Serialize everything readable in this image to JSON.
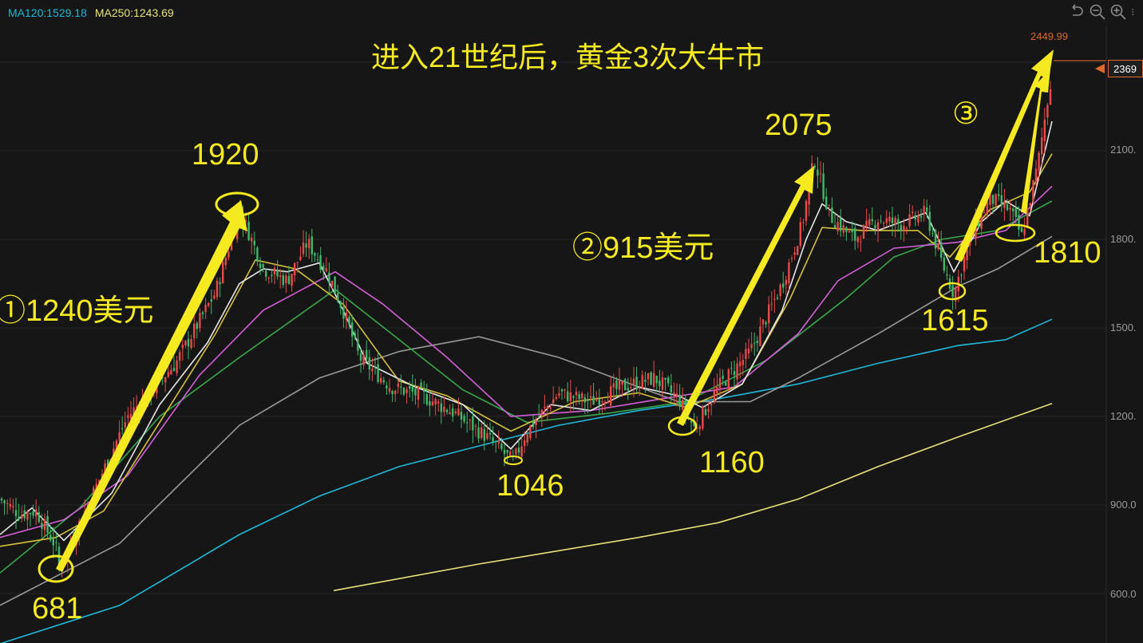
{
  "header": {
    "ma120_label": "MA120:1529.18",
    "ma250_label": "MA250:1243.69",
    "ma120_color": "#1fb8d8",
    "ma250_color": "#e9e27c",
    "icons": [
      "undo-icon",
      "zoom-out-icon",
      "zoom-in-icon",
      "more-icon"
    ]
  },
  "annotations": {
    "title": "进入21世纪后，黄金3次大牛市",
    "wave1": "①1240美元",
    "wave2": "②915美元",
    "wave3": "③",
    "p681": "681",
    "p1920": "1920",
    "p1046": "1046",
    "p1160": "1160",
    "p2075": "2075",
    "p1615": "1615",
    "p1810": "1810",
    "color": "#f5ea1f"
  },
  "price_axis": {
    "ticks": [
      "2100.",
      "1800.",
      "1500.",
      "1200.",
      "900.0",
      "600.0"
    ],
    "current_price": "2369",
    "high_marker": "2449.99",
    "marker_color": "#e0682c"
  },
  "chart_data": {
    "type": "candlestick",
    "ylim": [
      450,
      2500
    ],
    "price_path": [
      [
        0,
        920
      ],
      [
        25,
        870
      ],
      [
        45,
        880
      ],
      [
        70,
        760
      ],
      [
        73,
        681
      ],
      [
        110,
        900
      ],
      [
        160,
        1200
      ],
      [
        220,
        1380
      ],
      [
        270,
        1620
      ],
      [
        300,
        1900
      ],
      [
        330,
        1700
      ],
      [
        360,
        1660
      ],
      [
        385,
        1790
      ],
      [
        410,
        1690
      ],
      [
        430,
        1560
      ],
      [
        450,
        1400
      ],
      [
        490,
        1300
      ],
      [
        530,
        1270
      ],
      [
        570,
        1210
      ],
      [
        610,
        1130
      ],
      [
        643,
        1046
      ],
      [
        660,
        1150
      ],
      [
        700,
        1280
      ],
      [
        740,
        1250
      ],
      [
        780,
        1300
      ],
      [
        820,
        1330
      ],
      [
        850,
        1260
      ],
      [
        870,
        1160
      ],
      [
        900,
        1300
      ],
      [
        940,
        1420
      ],
      [
        980,
        1650
      ],
      [
        1005,
        1850
      ],
      [
        1020,
        2075
      ],
      [
        1040,
        1880
      ],
      [
        1070,
        1800
      ],
      [
        1100,
        1870
      ],
      [
        1130,
        1850
      ],
      [
        1160,
        1890
      ],
      [
        1180,
        1720
      ],
      [
        1195,
        1615
      ],
      [
        1215,
        1800
      ],
      [
        1240,
        1940
      ],
      [
        1265,
        1900
      ],
      [
        1280,
        1810
      ],
      [
        1300,
        2050
      ],
      [
        1318,
        2369
      ]
    ],
    "series": [
      {
        "name": "MA120",
        "color": "#1fb8d8",
        "values": [
          [
            0,
            430
          ],
          [
            150,
            560
          ],
          [
            300,
            800
          ],
          [
            400,
            930
          ],
          [
            500,
            1030
          ],
          [
            600,
            1100
          ],
          [
            700,
            1170
          ],
          [
            800,
            1220
          ],
          [
            900,
            1260
          ],
          [
            1000,
            1310
          ],
          [
            1100,
            1380
          ],
          [
            1200,
            1440
          ],
          [
            1260,
            1460
          ],
          [
            1318,
            1529.18
          ]
        ]
      },
      {
        "name": "MA250",
        "color": "#e9e27c",
        "values": [
          [
            418,
            610
          ],
          [
            600,
            700
          ],
          [
            800,
            790
          ],
          [
            900,
            840
          ],
          [
            1000,
            920
          ],
          [
            1100,
            1030
          ],
          [
            1200,
            1130
          ],
          [
            1318,
            1243.69
          ]
        ]
      },
      {
        "color": "#9a9a9a",
        "values": [
          [
            0,
            560
          ],
          [
            150,
            770
          ],
          [
            300,
            1170
          ],
          [
            400,
            1330
          ],
          [
            500,
            1420
          ],
          [
            600,
            1470
          ],
          [
            700,
            1400
          ],
          [
            780,
            1320
          ],
          [
            850,
            1250
          ],
          [
            940,
            1250
          ],
          [
            1000,
            1330
          ],
          [
            1100,
            1480
          ],
          [
            1200,
            1640
          ],
          [
            1250,
            1700
          ],
          [
            1318,
            1810
          ]
        ]
      },
      {
        "color": "#38a84c",
        "values": [
          [
            0,
            670
          ],
          [
            100,
            890
          ],
          [
            200,
            1200
          ],
          [
            300,
            1400
          ],
          [
            420,
            1630
          ],
          [
            500,
            1460
          ],
          [
            580,
            1290
          ],
          [
            660,
            1180
          ],
          [
            760,
            1210
          ],
          [
            860,
            1250
          ],
          [
            960,
            1390
          ],
          [
            1060,
            1600
          ],
          [
            1120,
            1740
          ],
          [
            1180,
            1800
          ],
          [
            1250,
            1830
          ],
          [
            1318,
            1930
          ]
        ]
      },
      {
        "color": "#d35fd8",
        "values": [
          [
            0,
            790
          ],
          [
            80,
            850
          ],
          [
            160,
            1000
          ],
          [
            250,
            1340
          ],
          [
            330,
            1560
          ],
          [
            420,
            1690
          ],
          [
            480,
            1580
          ],
          [
            560,
            1400
          ],
          [
            640,
            1200
          ],
          [
            740,
            1220
          ],
          [
            830,
            1260
          ],
          [
            920,
            1300
          ],
          [
            1000,
            1480
          ],
          [
            1050,
            1660
          ],
          [
            1120,
            1770
          ],
          [
            1200,
            1790
          ],
          [
            1260,
            1830
          ],
          [
            1318,
            1980
          ]
        ]
      },
      {
        "color": "#d4c23a",
        "values": [
          [
            0,
            760
          ],
          [
            70,
            790
          ],
          [
            130,
            880
          ],
          [
            200,
            1180
          ],
          [
            270,
            1480
          ],
          [
            320,
            1730
          ],
          [
            370,
            1700
          ],
          [
            430,
            1580
          ],
          [
            500,
            1320
          ],
          [
            560,
            1270
          ],
          [
            640,
            1150
          ],
          [
            720,
            1250
          ],
          [
            800,
            1280
          ],
          [
            860,
            1230
          ],
          [
            930,
            1310
          ],
          [
            990,
            1600
          ],
          [
            1030,
            1840
          ],
          [
            1080,
            1830
          ],
          [
            1150,
            1830
          ],
          [
            1190,
            1740
          ],
          [
            1240,
            1900
          ],
          [
            1290,
            1960
          ],
          [
            1318,
            2090
          ]
        ]
      },
      {
        "color": "#e6e6e6",
        "values": [
          [
            0,
            800
          ],
          [
            40,
            890
          ],
          [
            80,
            780
          ],
          [
            140,
            940
          ],
          [
            200,
            1240
          ],
          [
            260,
            1450
          ],
          [
            300,
            1650
          ],
          [
            330,
            1700
          ],
          [
            360,
            1690
          ],
          [
            400,
            1720
          ],
          [
            430,
            1560
          ],
          [
            460,
            1380
          ],
          [
            520,
            1300
          ],
          [
            580,
            1240
          ],
          [
            640,
            1090
          ],
          [
            690,
            1240
          ],
          [
            740,
            1220
          ],
          [
            800,
            1300
          ],
          [
            850,
            1270
          ],
          [
            880,
            1230
          ],
          [
            930,
            1310
          ],
          [
            980,
            1560
          ],
          [
            1010,
            1800
          ],
          [
            1030,
            1920
          ],
          [
            1060,
            1860
          ],
          [
            1100,
            1830
          ],
          [
            1160,
            1890
          ],
          [
            1195,
            1690
          ],
          [
            1230,
            1860
          ],
          [
            1260,
            1930
          ],
          [
            1290,
            1880
          ],
          [
            1318,
            2200
          ]
        ]
      }
    ]
  }
}
